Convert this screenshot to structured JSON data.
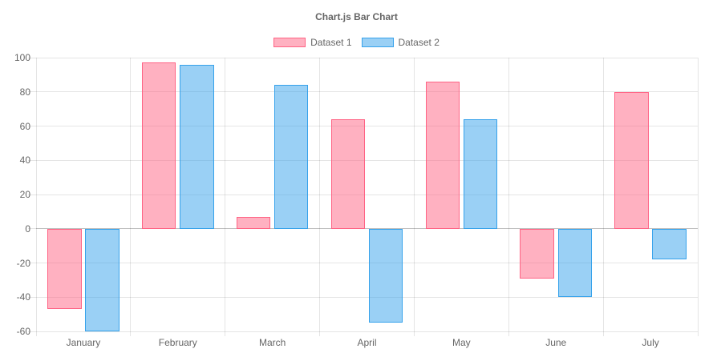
{
  "chart_data": {
    "type": "bar",
    "title": "Chart.js Bar Chart",
    "categories": [
      "January",
      "February",
      "March",
      "April",
      "May",
      "June",
      "July"
    ],
    "series": [
      {
        "name": "Dataset 1",
        "values": [
          -47,
          97,
          7,
          64,
          86,
          -29,
          80
        ],
        "fill": "rgba(255, 99, 132, 0.5)",
        "border": "#ff6384"
      },
      {
        "name": "Dataset 2",
        "values": [
          -60,
          96,
          84,
          -55,
          64,
          -40,
          -18
        ],
        "fill": "rgba(54, 162, 235, 0.5)",
        "border": "#36a2eb"
      }
    ],
    "ylim": [
      -60,
      100
    ],
    "yticks": [
      100,
      80,
      60,
      40,
      20,
      0,
      -20,
      -40,
      -60
    ],
    "grid": true,
    "legend_position": "top",
    "axis_text_color": "#666666",
    "grid_color": "rgba(0, 0, 0, 0.1)",
    "zero_line_color": "rgba(0, 0, 0, 0.25)"
  }
}
